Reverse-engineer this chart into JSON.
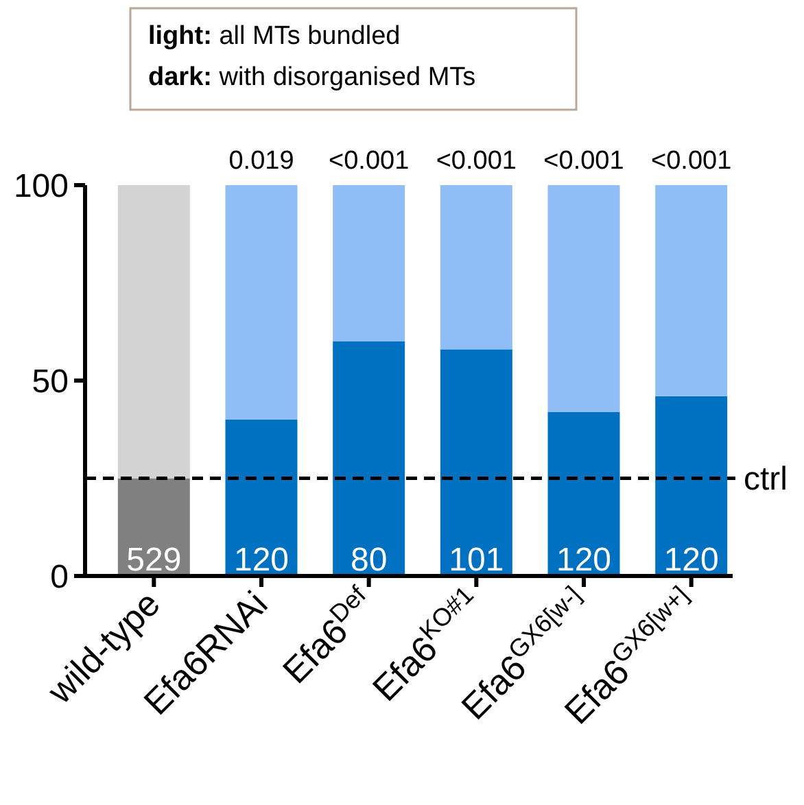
{
  "chart_data": {
    "type": "bar",
    "stacked": true,
    "categories": [
      "wild-type",
      "Efa6RNAi",
      "Efa6$^{Def}$",
      "Efa6$^{KO#1}$",
      "Efa6$^{GX6[w-]}$",
      "Efa6$^{GX6[w+]}$"
    ],
    "series": [
      {
        "values": [
          25,
          40,
          60,
          58,
          42,
          46
        ],
        "colors": [
          "#808080",
          "#0070c0",
          "#0070c0",
          "#0070c0",
          "#0070c0",
          "#0070c0"
        ]
      },
      {
        "values": [
          75,
          60,
          40,
          42,
          58,
          54
        ],
        "colors": [
          "#d3d3d3",
          "#8fbdf5",
          "#8fbdf5",
          "#8fbdf5",
          "#8fbdf5",
          "#8fbdf5"
        ]
      }
    ],
    "ylim": [
      0,
      100
    ],
    "yticks": [
      0,
      50,
      100
    ],
    "grid": false,
    "ref_lines": [
      {
        "axis": "y",
        "value": 25,
        "label": "ctrl",
        "line_style": "dashed",
        "color": "#000000"
      }
    ],
    "annotations": [
      "light: all MTs bundled",
      "dark: with disorganised MTs",
      {
        "text": "0.019",
        "x": "Efa6RNAi",
        "y": 100
      },
      {
        "text": "<0.001",
        "x": "Efa6$^{Def}$",
        "y": 100
      },
      {
        "text": "<0.001",
        "x": "Efa6$^{KO#1}$",
        "y": 100
      },
      {
        "text": "<0.001",
        "x": "Efa6$^{GX6[w-]}$",
        "y": 100
      },
      {
        "text": "<0.001",
        "x": "Efa6$^{GX6[w+]}$",
        "y": 100
      },
      {
        "text": "529",
        "x": "wild-type",
        "y": 0
      },
      {
        "text": "120",
        "x": "Efa6RNAi",
        "y": 0
      },
      {
        "text": "80",
        "x": "Efa6$^{Def}$",
        "y": 0
      },
      {
        "text": "101",
        "x": "Efa6$^{KO#1}$",
        "y": 0
      },
      {
        "text": "120",
        "x": "Efa6$^{GX6[w-]}$",
        "y": 0
      },
      {
        "text": "120",
        "x": "Efa6$^{GX6[w+]}$",
        "y": 0
      }
    ]
  }
}
